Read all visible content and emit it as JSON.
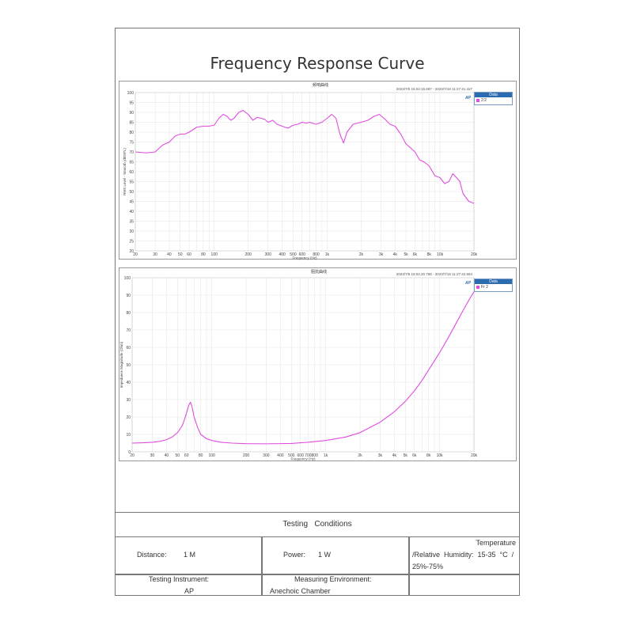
{
  "document": {
    "title": "Frequency Response Curve"
  },
  "chart_data": [
    {
      "type": "line",
      "title": "频响曲线",
      "subtitle": "2023/7/5 15:04:15.697 - 2023/7/18 11:27:41.427",
      "xlabel": "Frequency (Hz)",
      "ylabel": "RMS Level - Smooth (dBSPL)",
      "xscale": "log",
      "xlim": [
        20,
        20000
      ],
      "ylim": [
        20,
        100
      ],
      "yticks": [
        20,
        25,
        30,
        35,
        40,
        45,
        50,
        55,
        60,
        65,
        70,
        75,
        80,
        85,
        90,
        95,
        100
      ],
      "xticks": [
        20,
        30,
        40,
        50,
        60,
        80,
        100,
        200,
        300,
        400,
        500,
        600,
        800,
        1000,
        2000,
        3000,
        4000,
        5000,
        6000,
        8000,
        10000,
        20000
      ],
      "xtick_labels": [
        "20",
        "30",
        "40",
        "50",
        "60",
        "80",
        "100",
        "200",
        "300",
        "400",
        "500",
        "600",
        "800",
        "1k",
        "2k",
        "3k",
        "4k",
        "5k",
        "6k",
        "8k",
        "10k",
        "20k"
      ],
      "grid": true,
      "legend": {
        "title": "Data",
        "position": "right"
      },
      "color": "#e04ce0",
      "series": [
        {
          "name": "2:2",
          "x": [
            20,
            25,
            30,
            35,
            40,
            45,
            50,
            55,
            60,
            70,
            80,
            90,
            100,
            110,
            120,
            130,
            140,
            150,
            165,
            180,
            200,
            220,
            240,
            260,
            280,
            300,
            330,
            360,
            400,
            450,
            500,
            550,
            600,
            650,
            700,
            800,
            900,
            1000,
            1100,
            1200,
            1300,
            1400,
            1500,
            1700,
            2000,
            2300,
            2600,
            2900,
            3200,
            3600,
            4000,
            4500,
            5000,
            5500,
            6000,
            6600,
            7200,
            8000,
            9000,
            10000,
            11000,
            12000,
            13000,
            14000,
            15000,
            16000,
            18000,
            20000
          ],
          "y": [
            70,
            69.5,
            70,
            73.5,
            75,
            78,
            79,
            79,
            80,
            82.5,
            83,
            83,
            83.5,
            87,
            89,
            88,
            86,
            87,
            90,
            91,
            89,
            86,
            87.5,
            87,
            86.5,
            85,
            86,
            84,
            83,
            82,
            83.5,
            84,
            85,
            84.5,
            85,
            84,
            85,
            87,
            89,
            87,
            79,
            74.5,
            80,
            84,
            85,
            86,
            88,
            89,
            87,
            84,
            83,
            79,
            74,
            72,
            70,
            66,
            65,
            63,
            58,
            57,
            54,
            55,
            59,
            57,
            55,
            49,
            45,
            44
          ]
        }
      ]
    },
    {
      "type": "line",
      "title": "阻抗曲线",
      "subtitle": "2023/7/5 15:04:20.768 - 2023/7/18 11:27:42.554",
      "xlabel": "Frequency (Hz)",
      "ylabel": "Impedance Magnitude (Ohm)",
      "xscale": "log",
      "xlim": [
        20,
        20000
      ],
      "ylim": [
        0,
        100
      ],
      "yticks": [
        0,
        10,
        20,
        30,
        40,
        50,
        60,
        70,
        80,
        90,
        100
      ],
      "xticks": [
        20,
        30,
        40,
        50,
        60,
        80,
        100,
        200,
        300,
        400,
        500,
        600,
        700,
        800,
        1000,
        2000,
        3000,
        4000,
        5000,
        6000,
        8000,
        10000,
        20000
      ],
      "xtick_labels": [
        "20",
        "30",
        "40",
        "50",
        "60",
        "80",
        "100",
        "200",
        "300",
        "400",
        "500",
        "600",
        "700",
        "800",
        "1k",
        "2k",
        "3k",
        "4k",
        "5k",
        "6k",
        "8k",
        "10k",
        "20k"
      ],
      "grid": true,
      "legend": {
        "title": "Data",
        "position": "right"
      },
      "color": "#e04ce0",
      "series": [
        {
          "name": "Fr 2",
          "x": [
            20,
            25,
            30,
            35,
            40,
            45,
            50,
            55,
            58,
            61,
            63,
            65,
            67,
            70,
            75,
            80,
            90,
            100,
            120,
            150,
            200,
            300,
            500,
            700,
            1000,
            1500,
            2000,
            3000,
            4000,
            5000,
            6000,
            7000,
            8000,
            10000,
            12000,
            14000,
            16000,
            18000,
            20000
          ],
          "y": [
            5,
            5.2,
            5.5,
            6,
            7,
            8.5,
            11,
            15,
            19,
            24,
            27,
            28.5,
            26,
            20,
            14,
            10,
            7.5,
            6.5,
            5.5,
            5,
            4.7,
            4.6,
            4.8,
            5.5,
            6.5,
            8.5,
            11,
            17,
            23,
            29,
            35,
            41,
            47,
            57,
            66,
            74,
            81,
            87,
            92
          ]
        }
      ]
    }
  ],
  "conditions": {
    "title": "Testing   Conditions",
    "distance_label": "Distance:",
    "distance_value": "1 M",
    "power_label": "Power:",
    "power_value": "1 W",
    "temp_line1": "Temperature",
    "temp_line2": "/Relative  Humidity:  15-35  °C  /",
    "temp_line3": "25%-75%",
    "instrument_label": "Testing Instrument:",
    "instrument_value": "AP",
    "environment_label": "Measuring Environment:",
    "environment_value": "Anechoic Chamber"
  }
}
